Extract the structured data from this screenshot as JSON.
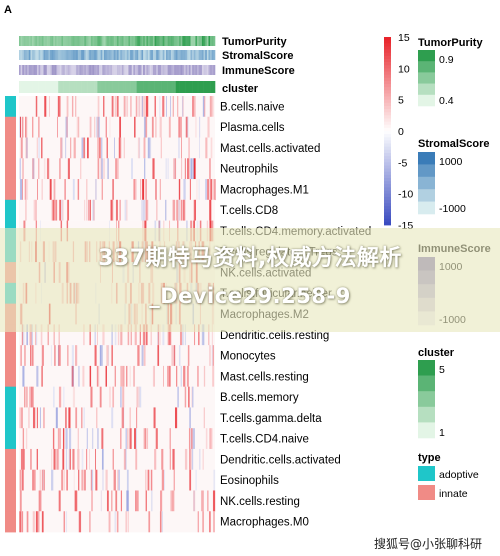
{
  "panel_label": "A",
  "chart_data": {
    "type": "heatmap",
    "title": "",
    "top_annotations": [
      "TumorPurity",
      "StromalScore",
      "ImmuneScore",
      "cluster"
    ],
    "row_groups": [
      "adoptive",
      "innate"
    ],
    "rows": [
      {
        "label": "B.cells.naive",
        "type": "adoptive"
      },
      {
        "label": "Plasma.cells",
        "type": "innate"
      },
      {
        "label": "Mast.cells.activated",
        "type": "innate"
      },
      {
        "label": "Neutrophils",
        "type": "innate"
      },
      {
        "label": "Macrophages.M1",
        "type": "innate"
      },
      {
        "label": "T.cells.CD8",
        "type": "adoptive"
      },
      {
        "label": "T.cells.CD4.memory.activated",
        "type": "adoptive"
      },
      {
        "label": "T.cells.regulatory.Tregs",
        "type": "adoptive"
      },
      {
        "label": "NK.cells.activated",
        "type": "innate"
      },
      {
        "label": "T.cells.follicular.helper",
        "type": "adoptive"
      },
      {
        "label": "Macrophages.M2",
        "type": "innate"
      },
      {
        "label": "Dendritic.cells.resting",
        "type": "innate"
      },
      {
        "label": "Monocytes",
        "type": "innate"
      },
      {
        "label": "Mast.cells.resting",
        "type": "innate"
      },
      {
        "label": "B.cells.memory",
        "type": "adoptive"
      },
      {
        "label": "T.cells.gamma.delta",
        "type": "adoptive"
      },
      {
        "label": "T.cells.CD4.naive",
        "type": "adoptive"
      },
      {
        "label": "Dendritic.cells.activated",
        "type": "innate"
      },
      {
        "label": "Eosinophils",
        "type": "innate"
      },
      {
        "label": "NK.cells.resting",
        "type": "innate"
      },
      {
        "label": "Macrophages.M0",
        "type": "innate"
      }
    ],
    "color_scale": {
      "ticks": [
        15,
        10,
        5,
        0,
        -5,
        -10,
        -15
      ],
      "range": [
        -15,
        15
      ],
      "colors": {
        "low": "#3b4cc0",
        "mid": "#ffffff",
        "high": "#e8242b"
      }
    },
    "legends": [
      {
        "title": "TumorPurity",
        "ticks": [
          "0.9",
          "0.4"
        ],
        "colors": [
          "#2e9e4f",
          "#e3f5e6"
        ]
      },
      {
        "title": "StromalScore",
        "ticks": [
          "1000",
          "-1000"
        ],
        "colors": [
          "#3a7cb8",
          "#d8ecef"
        ]
      },
      {
        "title": "ImmuneScore",
        "ticks": [
          "1000",
          "-1000"
        ],
        "colors": [
          "#7b6fb4",
          "#ebe7f3"
        ]
      },
      {
        "title": "cluster",
        "ticks": [
          "5",
          "1"
        ],
        "colors": [
          "#2e9e4f",
          "#e3f5e6"
        ]
      },
      {
        "title": "type",
        "entries": [
          {
            "label": "adoptive",
            "color": "#1fc6c9"
          },
          {
            "label": "innate",
            "color": "#f08b86"
          }
        ]
      }
    ]
  },
  "watermark": {
    "line1": "337期特马资料,权威方法解析",
    "line2": "_Device29.258-9",
    "corner": "搜狐号@小张聊科研"
  }
}
